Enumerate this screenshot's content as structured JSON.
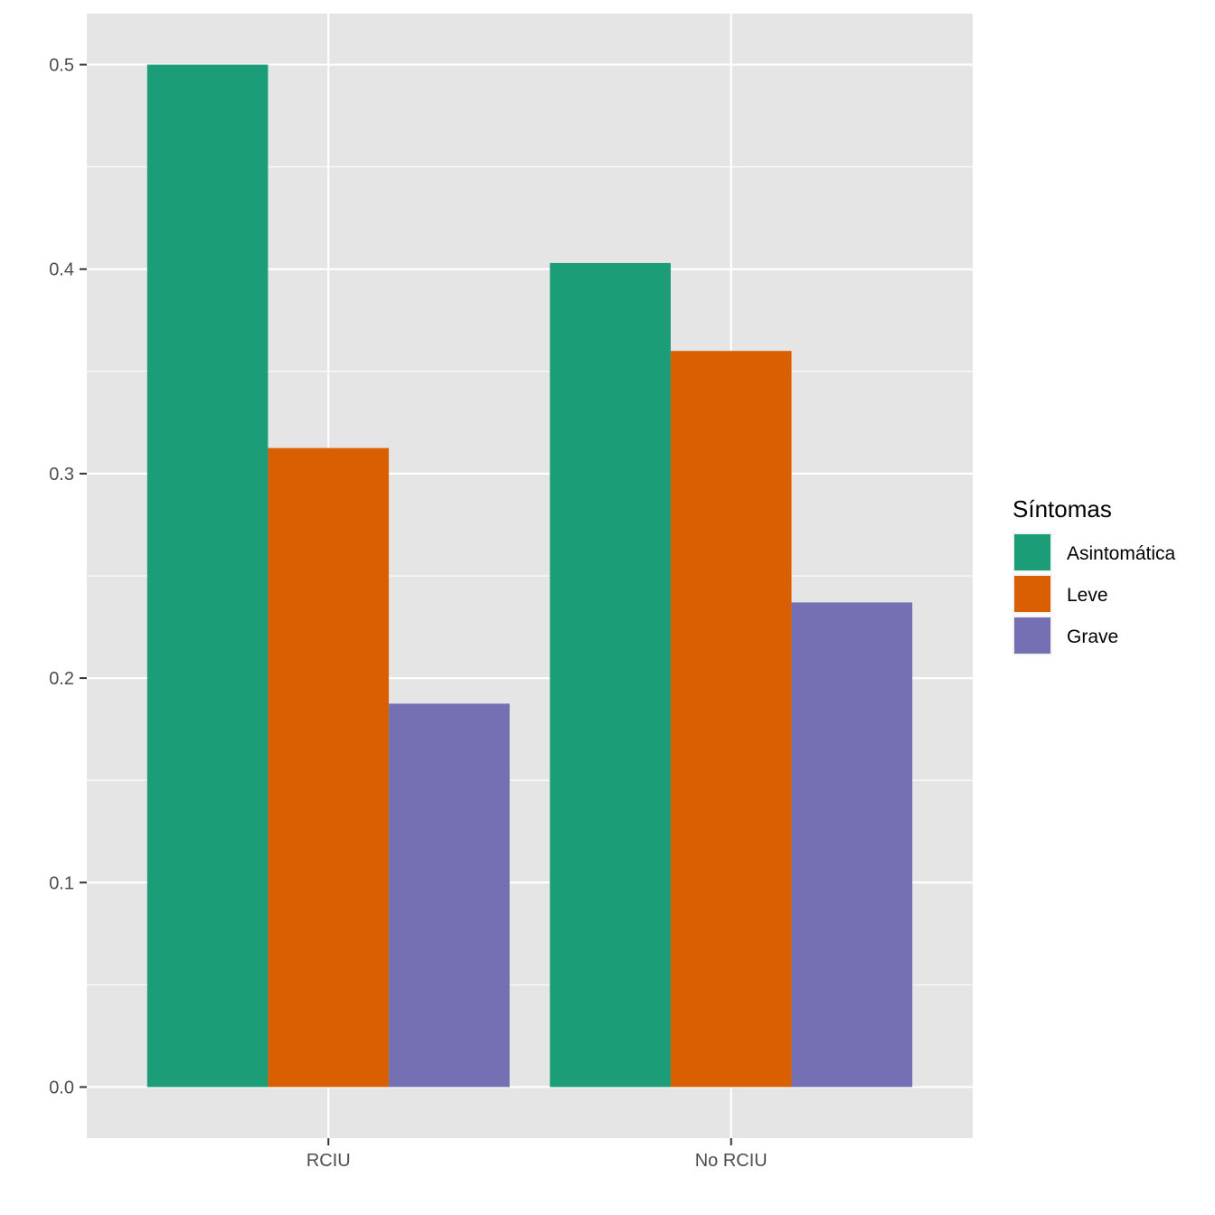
{
  "chart_data": {
    "type": "bar",
    "title": "",
    "xlabel": "",
    "ylabel": "",
    "categories": [
      "RCIU",
      "No RCIU"
    ],
    "series": [
      {
        "name": "Asintomática",
        "color": "#1b9e77",
        "values": [
          0.5,
          0.403
        ]
      },
      {
        "name": "Leve",
        "color": "#d95f02",
        "values": [
          0.3125,
          0.36
        ]
      },
      {
        "name": "Grave",
        "color": "#7570b3",
        "values": [
          0.1875,
          0.237
        ]
      }
    ],
    "ylim": [
      -0.025,
      0.525
    ],
    "yticks": [
      {
        "value": 0.0,
        "label": "0.0"
      },
      {
        "value": 0.1,
        "label": "0.1"
      },
      {
        "value": 0.2,
        "label": "0.2"
      },
      {
        "value": 0.3,
        "label": "0.3"
      },
      {
        "value": 0.4,
        "label": "0.4"
      },
      {
        "value": 0.5,
        "label": "0.5"
      }
    ],
    "legend": {
      "title": "Síntomas",
      "position": "right"
    },
    "colors": {
      "panel": "#e5e5e5",
      "grid": "#ffffff",
      "tick_text": "#4d4d4d",
      "tick_mark": "#333333"
    }
  }
}
